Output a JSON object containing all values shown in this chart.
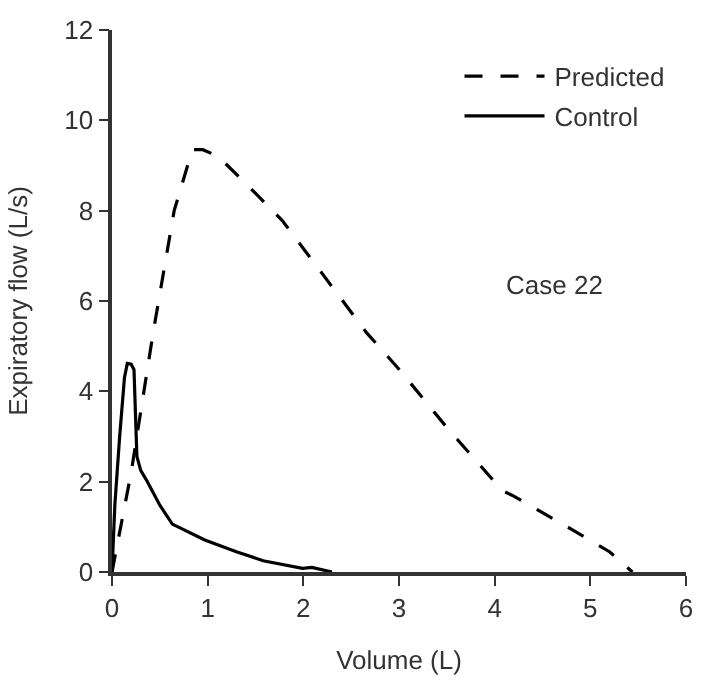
{
  "chart_data": {
    "type": "line",
    "xlabel": "Volume (L)",
    "ylabel": "Expiratory flow (L/s)",
    "xlim": [
      0,
      6
    ],
    "xticks": [
      0,
      1,
      2,
      3,
      4,
      5,
      6
    ],
    "ylim": [
      0,
      12
    ],
    "yticks": [
      0,
      2,
      4,
      6,
      8,
      10,
      12
    ],
    "legend": "top right",
    "marker": "none",
    "annotations": [
      "Case 22"
    ],
    "series": [
      {
        "name": "Predicted",
        "color": "#000000",
        "line_style": "dashed",
        "x": [
          0.0,
          0.2,
          0.43,
          0.65,
          0.84,
          0.95,
          1.11,
          1.4,
          1.78,
          2.2,
          2.66,
          3.0,
          3.5,
          4.08,
          4.2,
          4.8,
          5.2,
          5.44
        ],
        "values": [
          0.0,
          2.2,
          5.3,
          8.0,
          9.35,
          9.35,
          9.2,
          8.6,
          7.78,
          6.6,
          5.3,
          4.49,
          3.2,
          1.8,
          1.68,
          0.95,
          0.45,
          0.0
        ]
      },
      {
        "name": "Control",
        "color": "#000000",
        "line_style": "solid",
        "x": [
          0.0,
          0.03,
          0.08,
          0.13,
          0.16,
          0.2,
          0.23,
          0.26,
          0.3,
          0.37,
          0.5,
          0.63,
          0.97,
          1.3,
          1.58,
          1.99,
          2.09,
          2.3
        ],
        "values": [
          0.0,
          1.5,
          3.0,
          4.3,
          4.62,
          4.6,
          4.48,
          2.56,
          2.25,
          2.0,
          1.48,
          1.06,
          0.71,
          0.45,
          0.25,
          0.08,
          0.1,
          0.0
        ]
      }
    ]
  }
}
